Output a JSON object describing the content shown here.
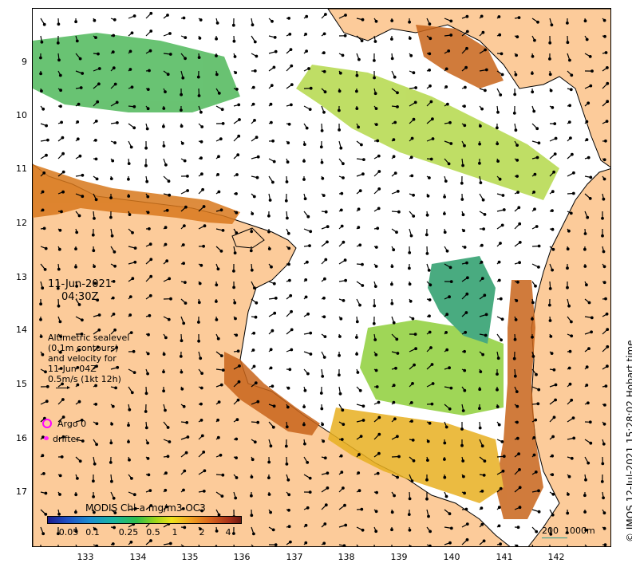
{
  "map": {
    "latitude_ticks": [
      "9",
      "10",
      "11",
      "12",
      "13",
      "14",
      "15",
      "16",
      "17"
    ],
    "longitude_ticks": [
      "133",
      "134",
      "135",
      "136",
      "137",
      "138",
      "139",
      "140",
      "141",
      "142"
    ],
    "date": "11-Jun-2021",
    "time": "04:30Z",
    "altimetry_text": "Altimetric sealevel\n(0.1m contours)\nand velocity for\n11-Jun 04Z\n0.5m/s (1kt 12h)",
    "legend": {
      "argo_label": "Argo 0",
      "drifter_label": "drifter",
      "argo_color": "#ff00ff",
      "drifter_color": "#ff22ff"
    },
    "colorbar": {
      "title": "MODIS Chl-a mg/m3 OC3",
      "ticks": [
        "0.05",
        "0.1",
        "0.25",
        "0.5",
        "1",
        "2",
        "4"
      ]
    },
    "scale": {
      "label": "200  1000m",
      "color": "#2a9d8f"
    },
    "credit": "© IMOS 12-Jul-2021 15:28:02 Hobart time",
    "colors": {
      "land": "#fccb9a",
      "ocean": "#ffffff",
      "chl_high": "#b8541a",
      "chl_mid": "#8fcf3a",
      "chl_low": "#2a9d6a"
    }
  }
}
